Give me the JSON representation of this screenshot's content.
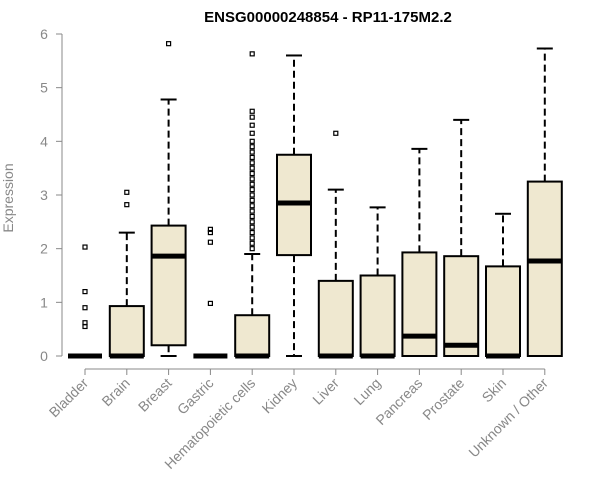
{
  "chart_data": {
    "type": "boxplot",
    "title": "ENSG00000248854 - RP11-175M2.2",
    "xlabel": "",
    "ylabel": "Expression",
    "ylim": [
      0,
      6
    ],
    "yticks": [
      0,
      1,
      2,
      3,
      4,
      5,
      6
    ],
    "grid": false,
    "box_color": "#efe8d0",
    "categories": [
      "Bladder",
      "Brain",
      "Breast",
      "Gastric",
      "Hematopoietic cells",
      "Kidney",
      "Liver",
      "Lung",
      "Pancreas",
      "Prostate",
      "Skin",
      "Unknown / Other"
    ],
    "boxes": [
      {
        "category": "Bladder",
        "min": 0,
        "q1": 0,
        "median": 0,
        "q3": 0,
        "max": 0,
        "outliers": [
          0.55,
          0.62,
          0.9,
          1.2,
          2.03
        ]
      },
      {
        "category": "Brain",
        "min": 0,
        "q1": 0,
        "median": 0,
        "q3": 0.93,
        "max": 2.3,
        "outliers": [
          2.82,
          3.05
        ]
      },
      {
        "category": "Breast",
        "min": 0,
        "q1": 0.2,
        "median": 1.86,
        "q3": 2.43,
        "max": 4.78,
        "outliers": [
          5.82
        ]
      },
      {
        "category": "Gastric",
        "min": 0,
        "q1": 0,
        "median": 0,
        "q3": 0,
        "max": 0,
        "outliers": [
          0.98,
          2.12,
          2.3,
          2.36
        ]
      },
      {
        "category": "Hematopoietic cells",
        "min": 0,
        "q1": 0,
        "median": 0,
        "q3": 0.76,
        "max": 1.9,
        "outliers": [
          2.0,
          2.1,
          2.2,
          2.3,
          2.4,
          2.5,
          2.6,
          2.7,
          2.8,
          2.9,
          3.0,
          3.1,
          3.2,
          3.3,
          3.4,
          3.5,
          3.6,
          3.7,
          3.8,
          3.9,
          4.0,
          4.15,
          4.3,
          4.45,
          4.56,
          5.63
        ]
      },
      {
        "category": "Kidney",
        "min": 0,
        "q1": 1.88,
        "median": 2.85,
        "q3": 3.75,
        "max": 5.6,
        "outliers": []
      },
      {
        "category": "Liver",
        "min": 0,
        "q1": 0,
        "median": 0,
        "q3": 1.4,
        "max": 3.1,
        "outliers": [
          4.15
        ]
      },
      {
        "category": "Lung",
        "min": 0,
        "q1": 0,
        "median": 0,
        "q3": 1.5,
        "max": 2.77,
        "outliers": []
      },
      {
        "category": "Pancreas",
        "min": 0,
        "q1": 0,
        "median": 0.37,
        "q3": 1.93,
        "max": 3.86,
        "outliers": []
      },
      {
        "category": "Prostate",
        "min": 0,
        "q1": 0,
        "median": 0.2,
        "q3": 1.86,
        "max": 4.4,
        "outliers": []
      },
      {
        "category": "Skin",
        "min": 0,
        "q1": 0,
        "median": 0,
        "q3": 1.67,
        "max": 2.65,
        "outliers": []
      },
      {
        "category": "Unknown / Other",
        "min": 0,
        "q1": 0,
        "median": 1.77,
        "q3": 3.25,
        "max": 5.73,
        "outliers": []
      }
    ]
  }
}
